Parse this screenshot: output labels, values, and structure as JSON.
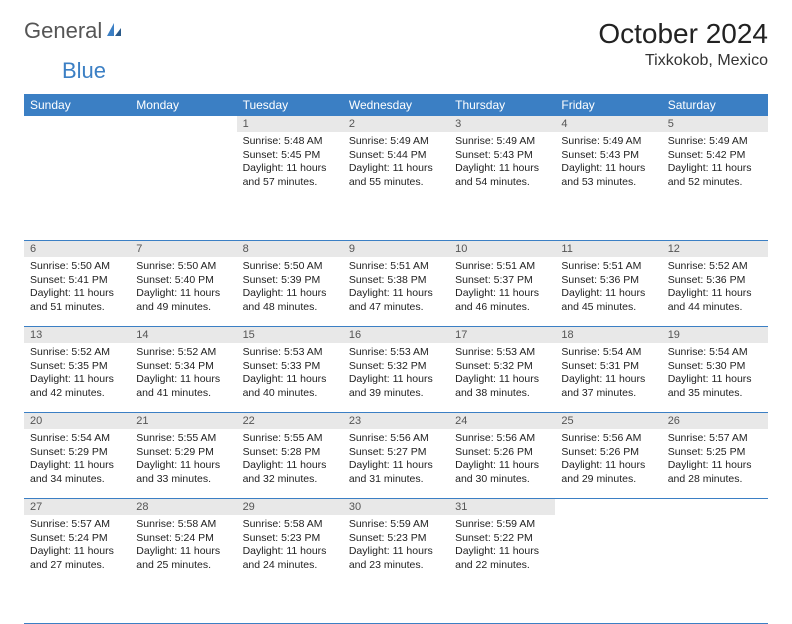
{
  "brand": {
    "part1": "General",
    "part2": "Blue"
  },
  "title": "October 2024",
  "location": "Tixkokob, Mexico",
  "colors": {
    "accent": "#3b7fc4",
    "daynum_bg": "#e8e8e8",
    "text": "#222222",
    "brand_gray": "#555555"
  },
  "weekdays": [
    "Sunday",
    "Monday",
    "Tuesday",
    "Wednesday",
    "Thursday",
    "Friday",
    "Saturday"
  ],
  "startOffset": 2,
  "days": [
    {
      "n": 1,
      "sunrise": "5:48 AM",
      "sunset": "5:45 PM",
      "daylight": "11 hours and 57 minutes."
    },
    {
      "n": 2,
      "sunrise": "5:49 AM",
      "sunset": "5:44 PM",
      "daylight": "11 hours and 55 minutes."
    },
    {
      "n": 3,
      "sunrise": "5:49 AM",
      "sunset": "5:43 PM",
      "daylight": "11 hours and 54 minutes."
    },
    {
      "n": 4,
      "sunrise": "5:49 AM",
      "sunset": "5:43 PM",
      "daylight": "11 hours and 53 minutes."
    },
    {
      "n": 5,
      "sunrise": "5:49 AM",
      "sunset": "5:42 PM",
      "daylight": "11 hours and 52 minutes."
    },
    {
      "n": 6,
      "sunrise": "5:50 AM",
      "sunset": "5:41 PM",
      "daylight": "11 hours and 51 minutes."
    },
    {
      "n": 7,
      "sunrise": "5:50 AM",
      "sunset": "5:40 PM",
      "daylight": "11 hours and 49 minutes."
    },
    {
      "n": 8,
      "sunrise": "5:50 AM",
      "sunset": "5:39 PM",
      "daylight": "11 hours and 48 minutes."
    },
    {
      "n": 9,
      "sunrise": "5:51 AM",
      "sunset": "5:38 PM",
      "daylight": "11 hours and 47 minutes."
    },
    {
      "n": 10,
      "sunrise": "5:51 AM",
      "sunset": "5:37 PM",
      "daylight": "11 hours and 46 minutes."
    },
    {
      "n": 11,
      "sunrise": "5:51 AM",
      "sunset": "5:36 PM",
      "daylight": "11 hours and 45 minutes."
    },
    {
      "n": 12,
      "sunrise": "5:52 AM",
      "sunset": "5:36 PM",
      "daylight": "11 hours and 44 minutes."
    },
    {
      "n": 13,
      "sunrise": "5:52 AM",
      "sunset": "5:35 PM",
      "daylight": "11 hours and 42 minutes."
    },
    {
      "n": 14,
      "sunrise": "5:52 AM",
      "sunset": "5:34 PM",
      "daylight": "11 hours and 41 minutes."
    },
    {
      "n": 15,
      "sunrise": "5:53 AM",
      "sunset": "5:33 PM",
      "daylight": "11 hours and 40 minutes."
    },
    {
      "n": 16,
      "sunrise": "5:53 AM",
      "sunset": "5:32 PM",
      "daylight": "11 hours and 39 minutes."
    },
    {
      "n": 17,
      "sunrise": "5:53 AM",
      "sunset": "5:32 PM",
      "daylight": "11 hours and 38 minutes."
    },
    {
      "n": 18,
      "sunrise": "5:54 AM",
      "sunset": "5:31 PM",
      "daylight": "11 hours and 37 minutes."
    },
    {
      "n": 19,
      "sunrise": "5:54 AM",
      "sunset": "5:30 PM",
      "daylight": "11 hours and 35 minutes."
    },
    {
      "n": 20,
      "sunrise": "5:54 AM",
      "sunset": "5:29 PM",
      "daylight": "11 hours and 34 minutes."
    },
    {
      "n": 21,
      "sunrise": "5:55 AM",
      "sunset": "5:29 PM",
      "daylight": "11 hours and 33 minutes."
    },
    {
      "n": 22,
      "sunrise": "5:55 AM",
      "sunset": "5:28 PM",
      "daylight": "11 hours and 32 minutes."
    },
    {
      "n": 23,
      "sunrise": "5:56 AM",
      "sunset": "5:27 PM",
      "daylight": "11 hours and 31 minutes."
    },
    {
      "n": 24,
      "sunrise": "5:56 AM",
      "sunset": "5:26 PM",
      "daylight": "11 hours and 30 minutes."
    },
    {
      "n": 25,
      "sunrise": "5:56 AM",
      "sunset": "5:26 PM",
      "daylight": "11 hours and 29 minutes."
    },
    {
      "n": 26,
      "sunrise": "5:57 AM",
      "sunset": "5:25 PM",
      "daylight": "11 hours and 28 minutes."
    },
    {
      "n": 27,
      "sunrise": "5:57 AM",
      "sunset": "5:24 PM",
      "daylight": "11 hours and 27 minutes."
    },
    {
      "n": 28,
      "sunrise": "5:58 AM",
      "sunset": "5:24 PM",
      "daylight": "11 hours and 25 minutes."
    },
    {
      "n": 29,
      "sunrise": "5:58 AM",
      "sunset": "5:23 PM",
      "daylight": "11 hours and 24 minutes."
    },
    {
      "n": 30,
      "sunrise": "5:59 AM",
      "sunset": "5:23 PM",
      "daylight": "11 hours and 23 minutes."
    },
    {
      "n": 31,
      "sunrise": "5:59 AM",
      "sunset": "5:22 PM",
      "daylight": "11 hours and 22 minutes."
    }
  ],
  "labels": {
    "sunrise": "Sunrise:",
    "sunset": "Sunset:",
    "daylight": "Daylight:"
  }
}
